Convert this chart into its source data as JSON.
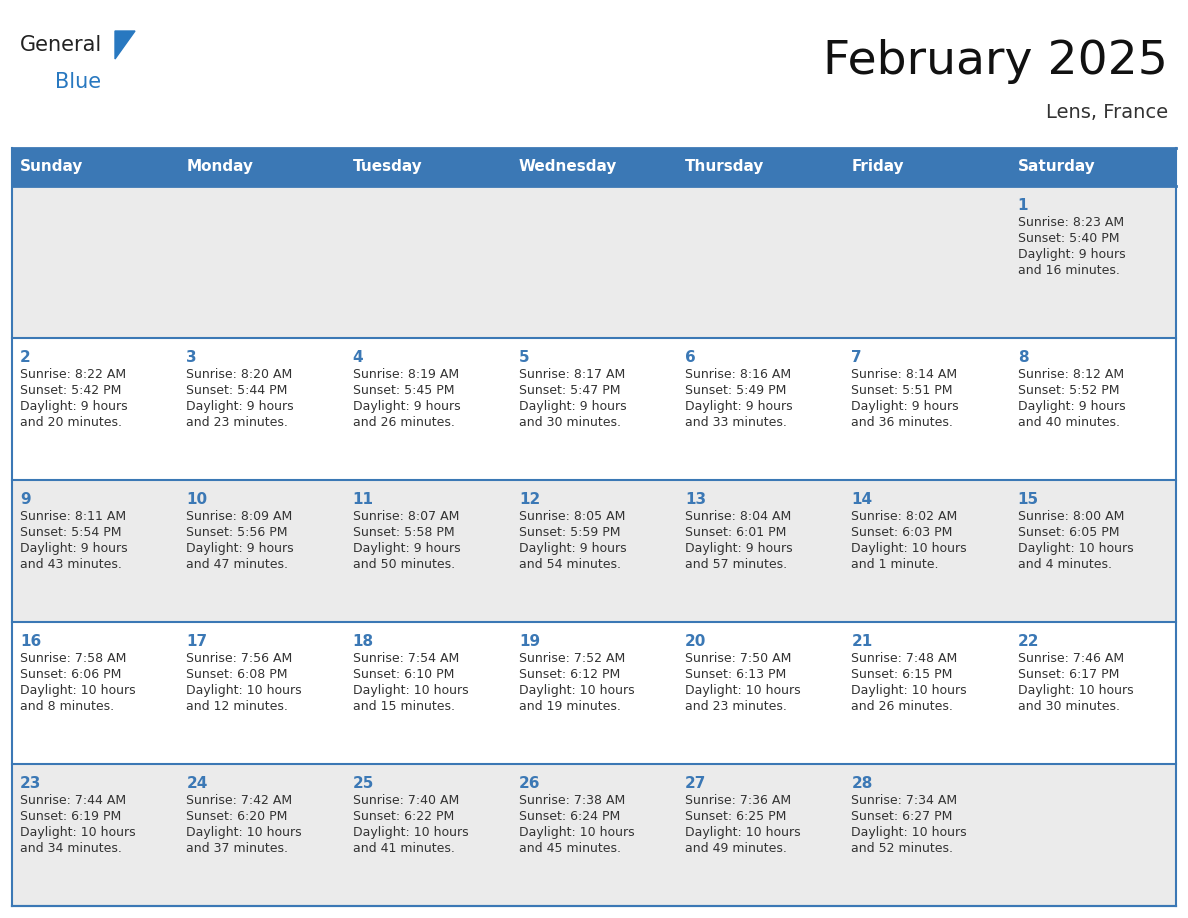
{
  "title": "February 2025",
  "subtitle": "Lens, France",
  "header_bg": "#3b78b5",
  "header_text_color": "#ffffff",
  "days_of_week": [
    "Sunday",
    "Monday",
    "Tuesday",
    "Wednesday",
    "Thursday",
    "Friday",
    "Saturday"
  ],
  "row_bg_odd": "#ebebeb",
  "row_bg_even": "#ffffff",
  "day_number_color": "#3b78b5",
  "text_color": "#333333",
  "border_color": "#3b78b5",
  "logo_general_color": "#222222",
  "logo_blue_color": "#2878c0",
  "logo_triangle_color": "#2878c0",
  "calendar": [
    [
      {
        "day": "",
        "info": ""
      },
      {
        "day": "",
        "info": ""
      },
      {
        "day": "",
        "info": ""
      },
      {
        "day": "",
        "info": ""
      },
      {
        "day": "",
        "info": ""
      },
      {
        "day": "",
        "info": ""
      },
      {
        "day": "1",
        "info": "Sunrise: 8:23 AM\nSunset: 5:40 PM\nDaylight: 9 hours\nand 16 minutes."
      }
    ],
    [
      {
        "day": "2",
        "info": "Sunrise: 8:22 AM\nSunset: 5:42 PM\nDaylight: 9 hours\nand 20 minutes."
      },
      {
        "day": "3",
        "info": "Sunrise: 8:20 AM\nSunset: 5:44 PM\nDaylight: 9 hours\nand 23 minutes."
      },
      {
        "day": "4",
        "info": "Sunrise: 8:19 AM\nSunset: 5:45 PM\nDaylight: 9 hours\nand 26 minutes."
      },
      {
        "day": "5",
        "info": "Sunrise: 8:17 AM\nSunset: 5:47 PM\nDaylight: 9 hours\nand 30 minutes."
      },
      {
        "day": "6",
        "info": "Sunrise: 8:16 AM\nSunset: 5:49 PM\nDaylight: 9 hours\nand 33 minutes."
      },
      {
        "day": "7",
        "info": "Sunrise: 8:14 AM\nSunset: 5:51 PM\nDaylight: 9 hours\nand 36 minutes."
      },
      {
        "day": "8",
        "info": "Sunrise: 8:12 AM\nSunset: 5:52 PM\nDaylight: 9 hours\nand 40 minutes."
      }
    ],
    [
      {
        "day": "9",
        "info": "Sunrise: 8:11 AM\nSunset: 5:54 PM\nDaylight: 9 hours\nand 43 minutes."
      },
      {
        "day": "10",
        "info": "Sunrise: 8:09 AM\nSunset: 5:56 PM\nDaylight: 9 hours\nand 47 minutes."
      },
      {
        "day": "11",
        "info": "Sunrise: 8:07 AM\nSunset: 5:58 PM\nDaylight: 9 hours\nand 50 minutes."
      },
      {
        "day": "12",
        "info": "Sunrise: 8:05 AM\nSunset: 5:59 PM\nDaylight: 9 hours\nand 54 minutes."
      },
      {
        "day": "13",
        "info": "Sunrise: 8:04 AM\nSunset: 6:01 PM\nDaylight: 9 hours\nand 57 minutes."
      },
      {
        "day": "14",
        "info": "Sunrise: 8:02 AM\nSunset: 6:03 PM\nDaylight: 10 hours\nand 1 minute."
      },
      {
        "day": "15",
        "info": "Sunrise: 8:00 AM\nSunset: 6:05 PM\nDaylight: 10 hours\nand 4 minutes."
      }
    ],
    [
      {
        "day": "16",
        "info": "Sunrise: 7:58 AM\nSunset: 6:06 PM\nDaylight: 10 hours\nand 8 minutes."
      },
      {
        "day": "17",
        "info": "Sunrise: 7:56 AM\nSunset: 6:08 PM\nDaylight: 10 hours\nand 12 minutes."
      },
      {
        "day": "18",
        "info": "Sunrise: 7:54 AM\nSunset: 6:10 PM\nDaylight: 10 hours\nand 15 minutes."
      },
      {
        "day": "19",
        "info": "Sunrise: 7:52 AM\nSunset: 6:12 PM\nDaylight: 10 hours\nand 19 minutes."
      },
      {
        "day": "20",
        "info": "Sunrise: 7:50 AM\nSunset: 6:13 PM\nDaylight: 10 hours\nand 23 minutes."
      },
      {
        "day": "21",
        "info": "Sunrise: 7:48 AM\nSunset: 6:15 PM\nDaylight: 10 hours\nand 26 minutes."
      },
      {
        "day": "22",
        "info": "Sunrise: 7:46 AM\nSunset: 6:17 PM\nDaylight: 10 hours\nand 30 minutes."
      }
    ],
    [
      {
        "day": "23",
        "info": "Sunrise: 7:44 AM\nSunset: 6:19 PM\nDaylight: 10 hours\nand 34 minutes."
      },
      {
        "day": "24",
        "info": "Sunrise: 7:42 AM\nSunset: 6:20 PM\nDaylight: 10 hours\nand 37 minutes."
      },
      {
        "day": "25",
        "info": "Sunrise: 7:40 AM\nSunset: 6:22 PM\nDaylight: 10 hours\nand 41 minutes."
      },
      {
        "day": "26",
        "info": "Sunrise: 7:38 AM\nSunset: 6:24 PM\nDaylight: 10 hours\nand 45 minutes."
      },
      {
        "day": "27",
        "info": "Sunrise: 7:36 AM\nSunset: 6:25 PM\nDaylight: 10 hours\nand 49 minutes."
      },
      {
        "day": "28",
        "info": "Sunrise: 7:34 AM\nSunset: 6:27 PM\nDaylight: 10 hours\nand 52 minutes."
      },
      {
        "day": "",
        "info": ""
      }
    ]
  ]
}
